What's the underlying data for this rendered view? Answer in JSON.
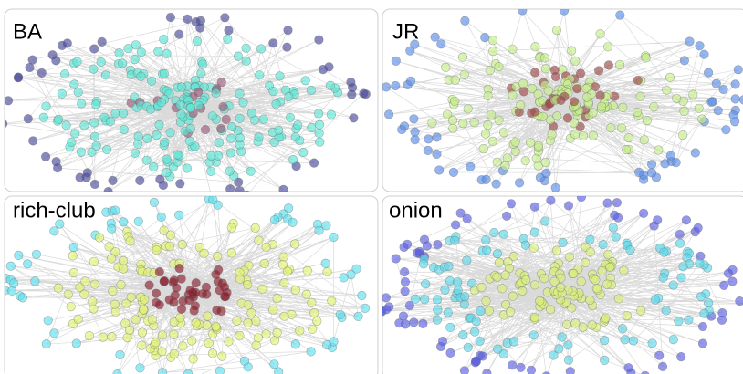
{
  "panels": [
    {
      "label": "BA"
    },
    {
      "label": "JR"
    },
    {
      "label": "rich-club"
    },
    {
      "label": "onion"
    }
  ]
}
